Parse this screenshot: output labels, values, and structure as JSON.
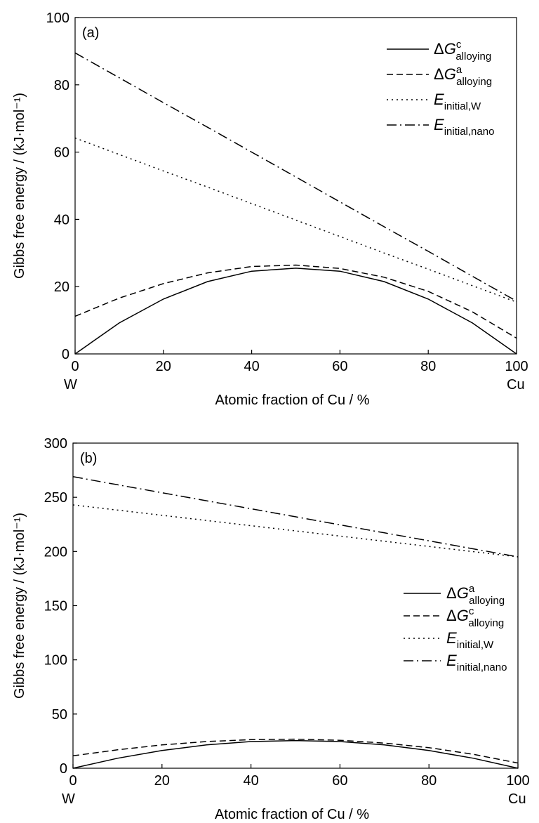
{
  "chart_data": [
    {
      "type": "line",
      "panel_label": "(a)",
      "xlabel": "Atomic fraction of Cu / %",
      "ylabel": "Gibbs free energy / (kJ·mol⁻¹)",
      "xlim": [
        0,
        100
      ],
      "ylim": [
        0,
        100
      ],
      "xticks": [
        0,
        20,
        40,
        60,
        80,
        100
      ],
      "yticks": [
        0,
        20,
        40,
        60,
        80,
        100
      ],
      "x_end_labels": {
        "left": "W",
        "right": "Cu"
      },
      "grid": false,
      "legend_position": "top-right",
      "x": [
        0,
        10,
        20,
        30,
        40,
        50,
        60,
        70,
        80,
        90,
        100
      ],
      "series": [
        {
          "key": "dGc",
          "legend_main": "ΔG",
          "legend_sup": "c",
          "legend_sub": "alloying",
          "style": "solid",
          "values": [
            0,
            9.2,
            16.3,
            21.5,
            24.6,
            25.5,
            24.6,
            21.5,
            16.3,
            9.2,
            0
          ]
        },
        {
          "key": "dGa",
          "legend_main": "ΔG",
          "legend_sup": "a",
          "legend_sub": "alloying",
          "style": "dashed",
          "values": [
            11.2,
            16.6,
            20.9,
            24.1,
            26.0,
            26.4,
            25.4,
            22.8,
            18.6,
            12.5,
            4.7
          ]
        },
        {
          "key": "EinitW",
          "legend_main": "E",
          "legend_sup": "",
          "legend_sub": "initial,W",
          "style": "dotted",
          "values": [
            64.2,
            59.3,
            54.4,
            49.6,
            44.7,
            39.8,
            34.9,
            30.0,
            25.2,
            20.3,
            15.4
          ]
        },
        {
          "key": "Einitnano",
          "legend_main": "E",
          "legend_sup": "",
          "legend_sub": "initial,nano",
          "style": "dashdot",
          "values": [
            89.5,
            82.1,
            74.7,
            67.4,
            60.0,
            52.6,
            45.2,
            37.8,
            30.5,
            23.1,
            15.7
          ]
        }
      ]
    },
    {
      "type": "line",
      "panel_label": "(b)",
      "xlabel": "Atomic fraction of Cu / %",
      "ylabel": "Gibbs free energy / (kJ·mol⁻¹)",
      "xlim": [
        0,
        100
      ],
      "ylim": [
        0,
        300
      ],
      "xticks": [
        0,
        20,
        40,
        60,
        80,
        100
      ],
      "yticks": [
        0,
        50,
        100,
        150,
        200,
        250,
        300
      ],
      "x_end_labels": {
        "left": "W",
        "right": "Cu"
      },
      "grid": false,
      "legend_position": "center-right",
      "x": [
        0,
        10,
        20,
        30,
        40,
        50,
        60,
        70,
        80,
        90,
        100
      ],
      "series": [
        {
          "key": "dGa",
          "legend_main": "ΔG",
          "legend_sup": "a",
          "legend_sub": "alloying",
          "style": "solid",
          "values": [
            0,
            9.2,
            16.3,
            21.5,
            24.6,
            25.5,
            24.6,
            21.5,
            16.3,
            9.2,
            0
          ]
        },
        {
          "key": "dGc",
          "legend_main": "ΔG",
          "legend_sup": "c",
          "legend_sub": "alloying",
          "style": "dashed",
          "values": [
            11.5,
            17.0,
            21.5,
            24.6,
            26.4,
            26.8,
            25.8,
            23.2,
            19.0,
            12.8,
            4.8
          ]
        },
        {
          "key": "EinitW",
          "legend_main": "E",
          "legend_sup": "",
          "legend_sub": "initial,W",
          "style": "dotted",
          "values": [
            243,
            238.2,
            233.4,
            228.6,
            223.8,
            219.0,
            214.2,
            209.4,
            204.6,
            199.8,
            195
          ]
        },
        {
          "key": "Einitnano",
          "legend_main": "E",
          "legend_sup": "",
          "legend_sub": "initial,nano",
          "style": "dashdot",
          "values": [
            269,
            261.6,
            254.2,
            246.8,
            239.4,
            232.0,
            224.6,
            217.2,
            209.8,
            202.4,
            195
          ]
        }
      ]
    }
  ]
}
